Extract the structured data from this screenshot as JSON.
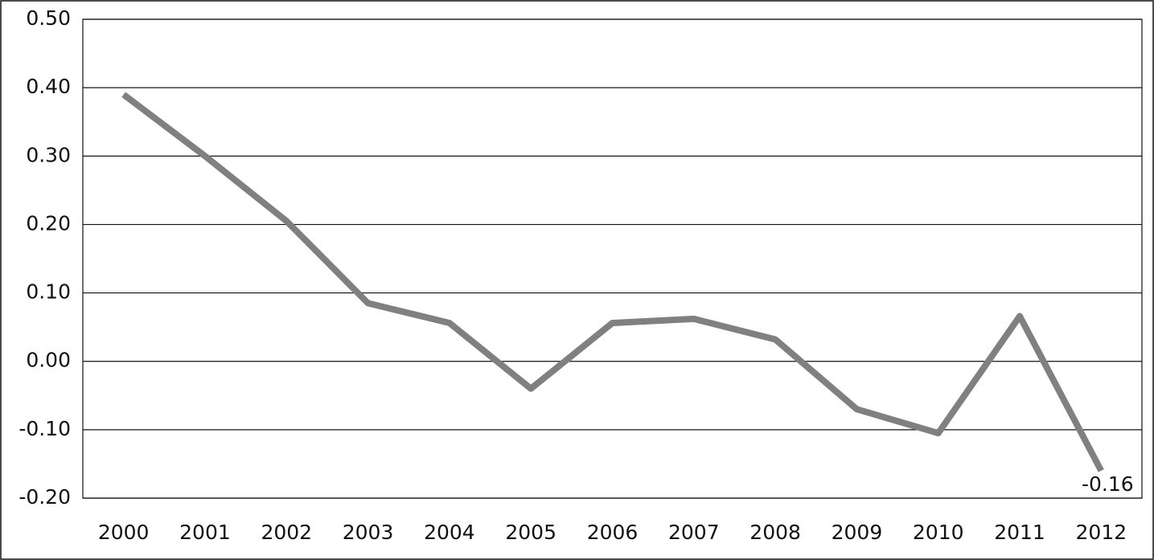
{
  "chart_data": {
    "type": "line",
    "categories": [
      "2000",
      "2001",
      "2002",
      "2003",
      "2004",
      "2005",
      "2006",
      "2007",
      "2008",
      "2009",
      "2010",
      "2011",
      "2012"
    ],
    "series": [
      {
        "color": "#808080",
        "values": [
          0.39,
          0.3,
          0.205,
          0.085,
          0.056,
          -0.04,
          0.056,
          0.062,
          0.032,
          -0.07,
          -0.105,
          0.066,
          -0.16
        ]
      }
    ],
    "ylim": [
      -0.2,
      0.5
    ],
    "yticks": [
      {
        "value": -0.2,
        "label": "-0.20"
      },
      {
        "value": -0.1,
        "label": "-0.10"
      },
      {
        "value": 0,
        "label": "0.00"
      },
      {
        "value": 0.1,
        "label": "0.10"
      },
      {
        "value": 0.2,
        "label": "0.20"
      },
      {
        "value": 0.3,
        "label": "0.30"
      },
      {
        "value": 0.4,
        "label": "0.40"
      },
      {
        "value": 0.5,
        "label": "0.50"
      }
    ],
    "grid": true
  }
}
